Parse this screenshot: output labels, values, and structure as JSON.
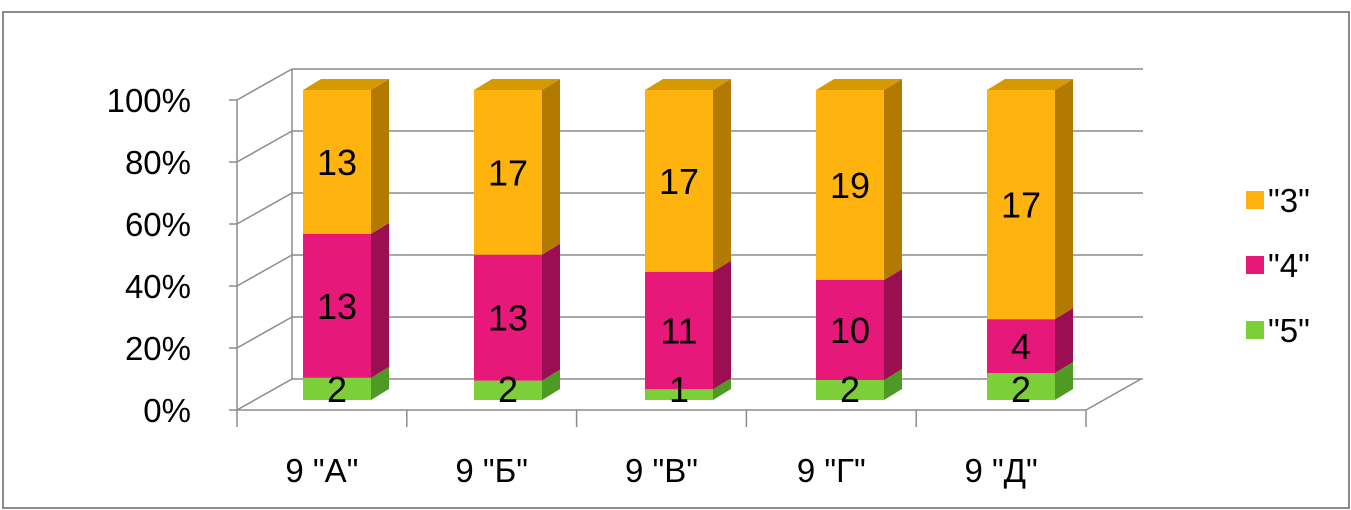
{
  "chart_data": {
    "type": "bar",
    "stacked": "percent",
    "three_d": true,
    "categories": [
      "9 \"А\"",
      "9 \"Б\"",
      "9 \"В\"",
      "9 \"Г\"",
      "9 \"Д\""
    ],
    "series": [
      {
        "name": "\"5\"",
        "values": [
          2,
          2,
          1,
          2,
          2
        ],
        "color": "#7dcf3a",
        "side_color": "#4f9a24",
        "top_color": "#9be05a"
      },
      {
        "name": "\"4\"",
        "values": [
          13,
          13,
          11,
          10,
          4
        ],
        "color": "#e6197a",
        "side_color": "#9b0f52",
        "top_color": "#ff4fa0"
      },
      {
        "name": "\"3\"",
        "values": [
          13,
          17,
          17,
          19,
          17
        ],
        "color": "#ffb30f",
        "side_color": "#b27a00",
        "top_color": "#d69a00"
      }
    ],
    "y_ticks": [
      "0%",
      "20%",
      "40%",
      "60%",
      "80%",
      "100%"
    ],
    "ylim": [
      0,
      100
    ],
    "grid": true,
    "legend": "right"
  }
}
